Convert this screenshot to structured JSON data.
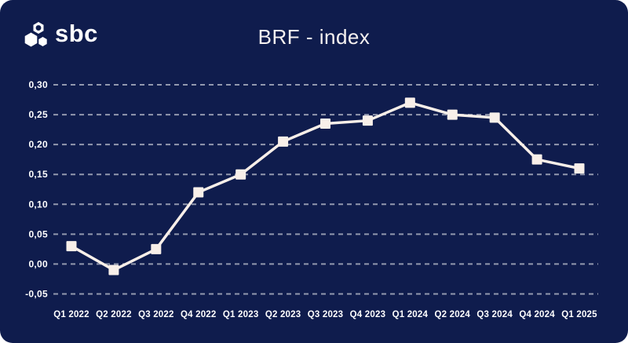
{
  "header": {
    "logo_text": "sbc",
    "title": "BRF - index"
  },
  "colors": {
    "card_background": "#0f1c4d",
    "page_background": "#ffffff",
    "label_text": "#ffffff",
    "title_text": "#f7f2f1",
    "line": "#f8efe9",
    "marker": "#f8efe9",
    "grid": "#ffffff",
    "grid_opacity": 0.55
  },
  "chart_data": {
    "type": "line",
    "title": "BRF - index",
    "categories": [
      "Q1 2022",
      "Q2 2022",
      "Q3 2022",
      "Q4 2022",
      "Q1 2023",
      "Q2 2023",
      "Q3 2023",
      "Q4 2023",
      "Q1 2024",
      "Q2 2024",
      "Q3 2024",
      "Q4 2024",
      "Q1 2025"
    ],
    "values": [
      0.03,
      -0.01,
      0.025,
      0.12,
      0.15,
      0.205,
      0.235,
      0.24,
      0.27,
      0.25,
      0.245,
      0.175,
      0.16
    ],
    "y_ticks": {
      "labels": [
        "0,30",
        "0,25",
        "0,20",
        "0,15",
        "0,10",
        "0,05",
        "0,00",
        "-0,05"
      ],
      "values": [
        0.3,
        0.25,
        0.2,
        0.15,
        0.1,
        0.05,
        0.0,
        -0.05
      ]
    },
    "ylim": [
      -0.05,
      0.3
    ],
    "xlabel": "",
    "ylabel": "",
    "grid": "dashed-horizontal",
    "legend": "none",
    "marker_shape": "square"
  }
}
